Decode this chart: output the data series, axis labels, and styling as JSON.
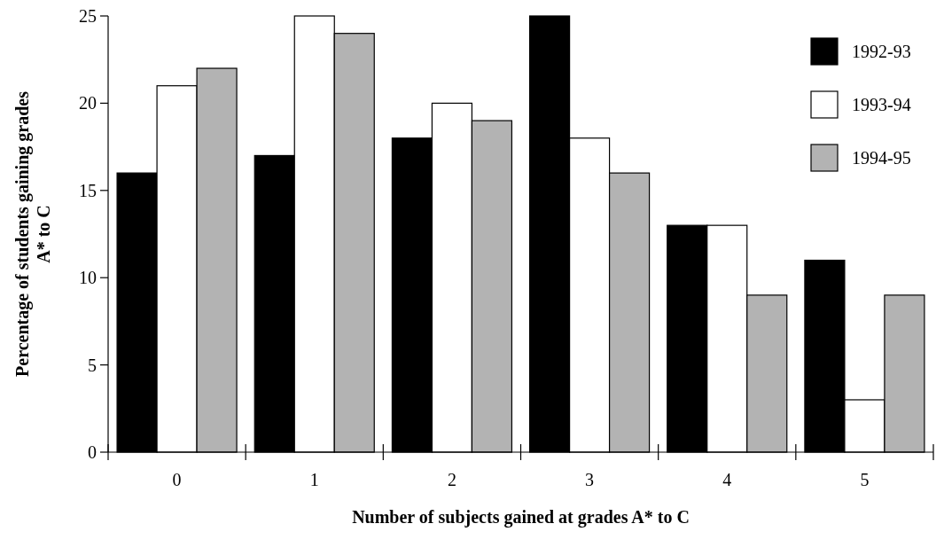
{
  "chart_data": {
    "type": "bar",
    "xlabel": "Number of subjects gained at grades A* to C",
    "ylabel": "Percentage of students gaining grades\nA* to C",
    "categories": [
      "0",
      "1",
      "2",
      "3",
      "4",
      "5"
    ],
    "series": [
      {
        "name": "1992-93",
        "color": "#000000",
        "values": [
          16,
          17,
          18,
          25,
          13,
          11
        ]
      },
      {
        "name": "1993-94",
        "color": "#ffffff",
        "values": [
          21,
          25,
          20,
          18,
          13,
          3
        ]
      },
      {
        "name": "1994-95",
        "color": "#b3b3b3",
        "values": [
          22,
          24,
          19,
          16,
          9,
          9
        ]
      }
    ],
    "ylim": [
      0,
      25
    ],
    "yticks": [
      0,
      5,
      10,
      15,
      20,
      25
    ],
    "grid": false,
    "legend": "top right"
  }
}
